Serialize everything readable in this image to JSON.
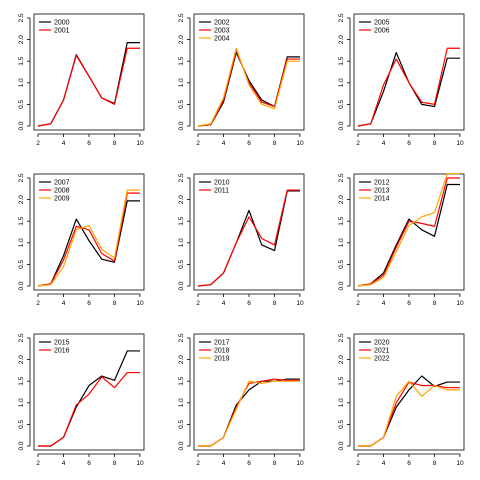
{
  "chart_data": [
    {
      "type": "line",
      "xlim": [
        2,
        10
      ],
      "ylim": [
        0,
        2.5
      ],
      "xticks": [
        2,
        4,
        6,
        8,
        10
      ],
      "yticks": [
        0.0,
        0.5,
        1.0,
        1.5,
        2.0,
        2.5
      ],
      "ytick_labels": [
        "0.0",
        "0.5",
        "1.0",
        "1.5",
        "2.0",
        "2.5"
      ],
      "legend": "top-left",
      "series": [
        {
          "name": "2000",
          "color": "#000000",
          "x": [
            2,
            3,
            4,
            5,
            6,
            7,
            8,
            9,
            10
          ],
          "y": [
            0.0,
            0.05,
            0.6,
            1.65,
            1.15,
            0.65,
            0.52,
            1.93,
            1.93
          ]
        },
        {
          "name": "2001",
          "color": "#ff0000",
          "x": [
            2,
            3,
            4,
            5,
            6,
            7,
            8,
            9,
            10
          ],
          "y": [
            0.0,
            0.05,
            0.6,
            1.63,
            1.15,
            0.65,
            0.5,
            1.8,
            1.8
          ]
        }
      ]
    },
    {
      "type": "line",
      "xlim": [
        2,
        10
      ],
      "ylim": [
        0,
        2.5
      ],
      "xticks": [
        2,
        4,
        6,
        8,
        10
      ],
      "yticks": [
        0.0,
        0.5,
        1.0,
        1.5,
        2.0,
        2.5
      ],
      "ytick_labels": [
        "0.0",
        "0.5",
        "1.0",
        "1.5",
        "2.0",
        "2.5"
      ],
      "legend": "top-left",
      "series": [
        {
          "name": "2002",
          "color": "#000000",
          "x": [
            2,
            3,
            4,
            5,
            6,
            7,
            8,
            9,
            10
          ],
          "y": [
            0.0,
            0.03,
            0.55,
            1.7,
            1.05,
            0.6,
            0.45,
            1.6,
            1.6
          ]
        },
        {
          "name": "2003",
          "color": "#ff0000",
          "x": [
            2,
            3,
            4,
            5,
            6,
            7,
            8,
            9,
            10
          ],
          "y": [
            0.0,
            0.03,
            0.6,
            1.75,
            1.0,
            0.55,
            0.45,
            1.55,
            1.55
          ]
        },
        {
          "name": "2004",
          "color": "#ffa500",
          "x": [
            2,
            3,
            4,
            5,
            6,
            7,
            8,
            9,
            10
          ],
          "y": [
            0.0,
            0.05,
            0.65,
            1.8,
            0.95,
            0.5,
            0.4,
            1.5,
            1.5
          ]
        }
      ]
    },
    {
      "type": "line",
      "xlim": [
        2,
        10
      ],
      "ylim": [
        0,
        2.5
      ],
      "xticks": [
        2,
        4,
        6,
        8,
        10
      ],
      "yticks": [
        0.0,
        0.5,
        1.0,
        1.5,
        2.0,
        2.5
      ],
      "ytick_labels": [
        "0.0",
        "0.5",
        "1.0",
        "1.5",
        "2.0",
        "2.5"
      ],
      "legend": "top-left",
      "series": [
        {
          "name": "2005",
          "color": "#000000",
          "x": [
            2,
            3,
            4,
            5,
            6,
            7,
            8,
            9,
            10
          ],
          "y": [
            0.0,
            0.05,
            0.8,
            1.7,
            1.0,
            0.5,
            0.45,
            1.57,
            1.57
          ]
        },
        {
          "name": "2006",
          "color": "#ff0000",
          "x": [
            2,
            3,
            4,
            5,
            6,
            7,
            8,
            9,
            10
          ],
          "y": [
            0.0,
            0.05,
            0.95,
            1.55,
            1.0,
            0.55,
            0.5,
            1.8,
            1.8
          ]
        }
      ]
    },
    {
      "type": "line",
      "xlim": [
        2,
        10
      ],
      "ylim": [
        0,
        2.5
      ],
      "xticks": [
        2,
        4,
        6,
        8,
        10
      ],
      "yticks": [
        0.0,
        0.5,
        1.0,
        1.5,
        2.0,
        2.5
      ],
      "ytick_labels": [
        "0.0",
        "0.5",
        "1.0",
        "1.5",
        "2.0",
        "2.5"
      ],
      "legend": "top-left",
      "series": [
        {
          "name": "2007",
          "color": "#000000",
          "x": [
            2,
            3,
            4,
            5,
            6,
            7,
            8,
            9,
            10
          ],
          "y": [
            0.0,
            0.05,
            0.7,
            1.55,
            1.05,
            0.62,
            0.55,
            1.97,
            1.97
          ]
        },
        {
          "name": "2008",
          "color": "#ff0000",
          "x": [
            2,
            3,
            4,
            5,
            6,
            7,
            8,
            9,
            10
          ],
          "y": [
            0.0,
            0.05,
            0.6,
            1.38,
            1.3,
            0.75,
            0.58,
            2.15,
            2.15
          ]
        },
        {
          "name": "2009",
          "color": "#ffa500",
          "x": [
            2,
            3,
            4,
            5,
            6,
            7,
            8,
            9,
            10
          ],
          "y": [
            0.0,
            0.03,
            0.45,
            1.3,
            1.4,
            0.85,
            0.65,
            2.22,
            2.22
          ]
        }
      ]
    },
    {
      "type": "line",
      "xlim": [
        2,
        10
      ],
      "ylim": [
        0,
        2.5
      ],
      "xticks": [
        2,
        4,
        6,
        8,
        10
      ],
      "yticks": [
        0.0,
        0.5,
        1.0,
        1.5,
        2.0,
        2.5
      ],
      "ytick_labels": [
        "0.0",
        "0.5",
        "1.0",
        "1.5",
        "2.0",
        "2.5"
      ],
      "legend": "top-left",
      "series": [
        {
          "name": "2010",
          "color": "#000000",
          "x": [
            2,
            3,
            4,
            5,
            6,
            7,
            8,
            9,
            10
          ],
          "y": [
            0.0,
            0.03,
            0.3,
            1.0,
            1.75,
            0.95,
            0.82,
            2.2,
            2.2
          ]
        },
        {
          "name": "2011",
          "color": "#ff0000",
          "x": [
            2,
            3,
            4,
            5,
            6,
            7,
            8,
            9,
            10
          ],
          "y": [
            0.0,
            0.03,
            0.3,
            1.0,
            1.6,
            1.1,
            0.95,
            2.22,
            2.22
          ]
        }
      ]
    },
    {
      "type": "line",
      "xlim": [
        2,
        10
      ],
      "ylim": [
        0,
        2.5
      ],
      "xticks": [
        2,
        4,
        6,
        8,
        10
      ],
      "yticks": [
        0.0,
        0.5,
        1.0,
        1.5,
        2.0,
        2.5
      ],
      "ytick_labels": [
        "0.0",
        "0.5",
        "1.0",
        "1.5",
        "2.0",
        "2.5"
      ],
      "legend": "top-left",
      "series": [
        {
          "name": "2012",
          "color": "#000000",
          "x": [
            2,
            3,
            4,
            5,
            6,
            7,
            8,
            9,
            10
          ],
          "y": [
            0.0,
            0.05,
            0.3,
            0.95,
            1.55,
            1.3,
            1.15,
            2.35,
            2.35
          ]
        },
        {
          "name": "2013",
          "color": "#ff0000",
          "x": [
            2,
            3,
            4,
            5,
            6,
            7,
            8,
            9,
            10
          ],
          "y": [
            0.0,
            0.05,
            0.25,
            0.9,
            1.5,
            1.45,
            1.38,
            2.5,
            2.5
          ]
        },
        {
          "name": "2014",
          "color": "#ffa500",
          "x": [
            2,
            3,
            4,
            5,
            6,
            7,
            8,
            9,
            10
          ],
          "y": [
            0.0,
            0.03,
            0.2,
            0.8,
            1.4,
            1.6,
            1.7,
            2.6,
            2.6
          ]
        }
      ]
    },
    {
      "type": "line",
      "xlim": [
        2,
        10
      ],
      "ylim": [
        0,
        2.5
      ],
      "xticks": [
        2,
        4,
        6,
        8,
        10
      ],
      "yticks": [
        0.0,
        0.5,
        1.0,
        1.5,
        2.0,
        2.5
      ],
      "ytick_labels": [
        "0.0",
        "0.5",
        "1.0",
        "1.5",
        "2.0",
        "2.5"
      ],
      "legend": "top-left",
      "series": [
        {
          "name": "2015",
          "color": "#000000",
          "x": [
            2,
            3,
            4,
            5,
            6,
            7,
            8,
            9,
            10
          ],
          "y": [
            0.0,
            0.0,
            0.2,
            0.9,
            1.4,
            1.62,
            1.52,
            2.2,
            2.2
          ]
        },
        {
          "name": "2016",
          "color": "#ff0000",
          "x": [
            2,
            3,
            4,
            5,
            6,
            7,
            8,
            9,
            10
          ],
          "y": [
            0.0,
            0.0,
            0.2,
            0.95,
            1.2,
            1.6,
            1.35,
            1.7,
            1.7
          ]
        }
      ]
    },
    {
      "type": "line",
      "xlim": [
        2,
        10
      ],
      "ylim": [
        0,
        2.5
      ],
      "xticks": [
        2,
        4,
        6,
        8,
        10
      ],
      "yticks": [
        0.0,
        0.5,
        1.0,
        1.5,
        2.0,
        2.5
      ],
      "ytick_labels": [
        "0.0",
        "0.5",
        "1.0",
        "1.5",
        "2.0",
        "2.5"
      ],
      "legend": "top-left",
      "series": [
        {
          "name": "2017",
          "color": "#000000",
          "x": [
            2,
            3,
            4,
            5,
            6,
            7,
            8,
            9,
            10
          ],
          "y": [
            0.0,
            0.0,
            0.2,
            0.95,
            1.3,
            1.5,
            1.5,
            1.55,
            1.55
          ]
        },
        {
          "name": "2018",
          "color": "#ff0000",
          "x": [
            2,
            3,
            4,
            5,
            6,
            7,
            8,
            9,
            10
          ],
          "y": [
            0.0,
            0.0,
            0.2,
            0.9,
            1.45,
            1.5,
            1.55,
            1.52,
            1.52
          ]
        },
        {
          "name": "2019",
          "color": "#ffa500",
          "x": [
            2,
            3,
            4,
            5,
            6,
            7,
            8,
            9,
            10
          ],
          "y": [
            0.0,
            0.0,
            0.2,
            0.85,
            1.5,
            1.45,
            1.5,
            1.5,
            1.5
          ]
        }
      ]
    },
    {
      "type": "line",
      "xlim": [
        2,
        10
      ],
      "ylim": [
        0,
        2.5
      ],
      "xticks": [
        2,
        4,
        6,
        8,
        10
      ],
      "yticks": [
        0.0,
        0.5,
        1.0,
        1.5,
        2.0,
        2.5
      ],
      "ytick_labels": [
        "0.0",
        "0.5",
        "1.0",
        "1.5",
        "2.0",
        "2.5"
      ],
      "legend": "top-left",
      "series": [
        {
          "name": "2020",
          "color": "#000000",
          "x": [
            2,
            3,
            4,
            5,
            6,
            7,
            8,
            9,
            10
          ],
          "y": [
            0.0,
            0.0,
            0.2,
            0.9,
            1.3,
            1.62,
            1.38,
            1.48,
            1.48
          ]
        },
        {
          "name": "2021",
          "color": "#ff0000",
          "x": [
            2,
            3,
            4,
            5,
            6,
            7,
            8,
            9,
            10
          ],
          "y": [
            0.0,
            0.0,
            0.2,
            1.0,
            1.48,
            1.4,
            1.4,
            1.35,
            1.35
          ]
        },
        {
          "name": "2022",
          "color": "#ffa500",
          "x": [
            2,
            3,
            4,
            5,
            6,
            7,
            8,
            9,
            10
          ],
          "y": [
            0.0,
            0.0,
            0.2,
            1.15,
            1.5,
            1.15,
            1.4,
            1.3,
            1.3
          ]
        }
      ]
    }
  ]
}
